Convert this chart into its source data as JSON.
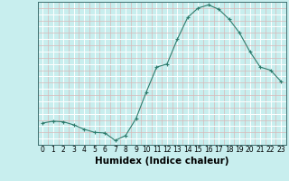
{
  "x": [
    0,
    1,
    2,
    3,
    4,
    5,
    6,
    7,
    8,
    9,
    10,
    11,
    12,
    13,
    14,
    15,
    16,
    17,
    18,
    19,
    20,
    21,
    22,
    23
  ],
  "y": [
    8.5,
    8.8,
    8.7,
    8.2,
    7.5,
    7.0,
    6.9,
    5.7,
    6.5,
    9.2,
    13.5,
    17.5,
    18.0,
    22.0,
    25.5,
    27.0,
    27.5,
    26.8,
    25.2,
    23.0,
    20.0,
    17.5,
    17.0,
    15.2
  ],
  "xlabel": "Humidex (Indice chaleur)",
  "ylim": [
    5,
    28
  ],
  "xlim": [
    -0.5,
    23.5
  ],
  "yticks": [
    5,
    7,
    9,
    11,
    13,
    15,
    17,
    19,
    21,
    23,
    25,
    27
  ],
  "xticks": [
    0,
    1,
    2,
    3,
    4,
    5,
    6,
    7,
    8,
    9,
    10,
    11,
    12,
    13,
    14,
    15,
    16,
    17,
    18,
    19,
    20,
    21,
    22,
    23
  ],
  "line_color": "#2e7d6e",
  "marker": "+",
  "bg_color": "#c8eeee",
  "grid_color_major": "#d8b8b8",
  "grid_color_white": "#e8f8f8",
  "tick_fontsize": 5.5,
  "xlabel_fontsize": 7.5
}
